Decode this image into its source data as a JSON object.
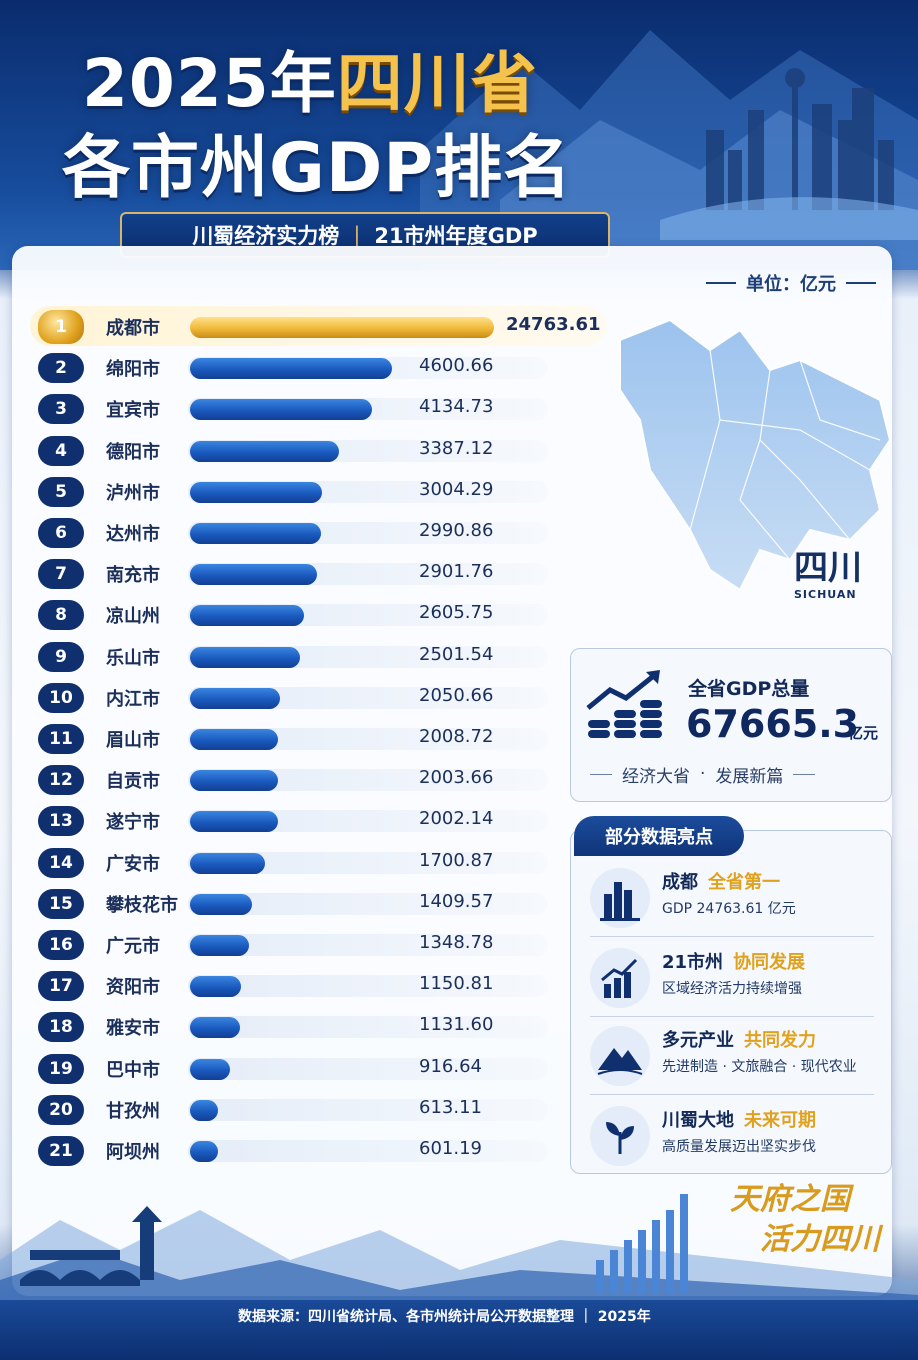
{
  "header": {
    "title_year": "2025年",
    "title_province": "四川省",
    "title_line2": "各市州GDP排名",
    "subtitle_left": "川蜀经济实力榜",
    "subtitle_sep": "|",
    "subtitle_right": "21市州年度GDP"
  },
  "unit_label": "单位：亿元",
  "map": {
    "label": "四川",
    "sub": "SICHUAN"
  },
  "total": {
    "title": "全省GDP总量",
    "value": "67665.3",
    "unit": "亿元",
    "slogan_left": "经济大省",
    "slogan_dot": "·",
    "slogan_right": "发展新篇"
  },
  "highlights": {
    "tab": "部分数据亮点",
    "items": [
      {
        "title": "成都",
        "hot": "全省第一",
        "desc": "GDP 24763.61 亿元",
        "icon": "skyline-icon"
      },
      {
        "title": "21市州",
        "hot": "协同发展",
        "desc": "区域经济活力持续增强",
        "icon": "growth-chart-icon"
      },
      {
        "title": "多元产业",
        "hot": "共同发力",
        "desc": "先进制造 · 文旅融合 · 现代农业",
        "icon": "mountain-icon"
      },
      {
        "title": "川蜀大地",
        "hot": "未来可期",
        "desc": "高质量发展迈出坚实步伐",
        "icon": "sprout-icon"
      }
    ]
  },
  "bottom_slogan_1": "天府之国",
  "bottom_slogan_2": "活力四川",
  "footer": "数据来源：四川省统计局、各市州统计局公开数据整理 ｜ 2025年",
  "chart_data": {
    "type": "bar",
    "orientation": "horizontal",
    "categories": [
      "成都市",
      "绵阳市",
      "宜宾市",
      "德阳市",
      "泸州市",
      "达州市",
      "南充市",
      "凉山州",
      "乐山市",
      "内江市",
      "眉山市",
      "自贡市",
      "遂宁市",
      "广安市",
      "攀枝花市",
      "广元市",
      "资阳市",
      "雅安市",
      "巴中市",
      "甘孜州",
      "阿坝州"
    ],
    "ranks": [
      "1",
      "2",
      "3",
      "4",
      "5",
      "6",
      "7",
      "8",
      "9",
      "10",
      "11",
      "12",
      "13",
      "14",
      "15",
      "16",
      "17",
      "18",
      "19",
      "20",
      "21"
    ],
    "values": [
      24763.61,
      4600.66,
      4134.73,
      3387.12,
      3004.29,
      2990.86,
      2901.76,
      2605.75,
      2501.54,
      2050.66,
      2008.72,
      2003.66,
      2002.14,
      1700.87,
      1409.57,
      1348.78,
      1150.81,
      1131.6,
      916.64,
      613.11,
      601.19
    ],
    "value_labels": [
      "24763.61",
      "4600.66",
      "4134.73",
      "3387.12",
      "3004.29",
      "2990.86",
      "2901.76",
      "2605.75",
      "2501.54",
      "2050.66",
      "2008.72",
      "2003.66",
      "2002.14",
      "1700.87",
      "1409.57",
      "1348.78",
      "1150.81",
      "1131.60",
      "916.64",
      "613.11",
      "601.19"
    ],
    "colors": {
      "first": "#f0b93a",
      "rest": "#1a59be"
    }
  }
}
